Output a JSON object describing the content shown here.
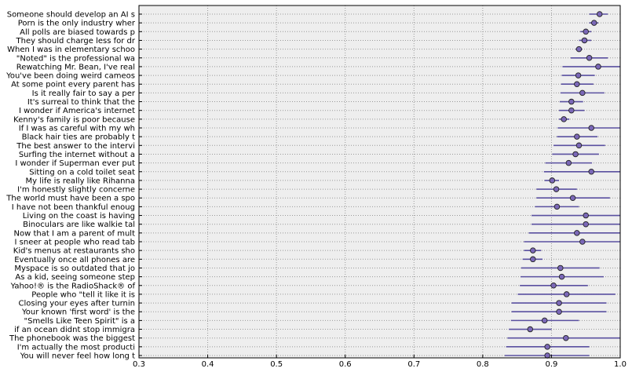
{
  "chart_data": {
    "type": "scatter",
    "orientation": "horizontal-interval",
    "title": "",
    "xlabel": "",
    "ylabel": "",
    "xlim": [
      0.3,
      1.0
    ],
    "x_ticks": [
      "0.3",
      "0.4",
      "0.5",
      "0.6",
      "0.7",
      "0.8",
      "0.9",
      "1.0"
    ],
    "grid": true,
    "colors": {
      "background": "#eeeeee",
      "marker": "#7b68b8",
      "interval": "#5a50a0",
      "grid": "#999999"
    },
    "rows": [
      {
        "label": "Someone should develop an AI s",
        "value": 0.97,
        "low": 0.955,
        "high": 0.982
      },
      {
        "label": "Porn is the only industry wher",
        "value": 0.962,
        "low": 0.955,
        "high": 0.968
      },
      {
        "label": "All polls are biased towards p",
        "value": 0.95,
        "low": 0.942,
        "high": 0.958
      },
      {
        "label": "They should charge less for dr",
        "value": 0.948,
        "low": 0.94,
        "high": 0.958
      },
      {
        "label": "When I was in elementary schoo",
        "value": 0.94,
        "low": 0.935,
        "high": 0.945
      },
      {
        "label": "\"Noted\" is the professional wa",
        "value": 0.955,
        "low": 0.928,
        "high": 0.982
      },
      {
        "label": "Rewatching Mr. Bean, I've real",
        "value": 0.968,
        "low": 0.916,
        "high": 1.0
      },
      {
        "label": "You've been doing weird cameos",
        "value": 0.939,
        "low": 0.915,
        "high": 0.963
      },
      {
        "label": "At some point every parent has",
        "value": 0.937,
        "low": 0.914,
        "high": 0.961
      },
      {
        "label": "Is it really fair to say a per",
        "value": 0.945,
        "low": 0.913,
        "high": 0.977
      },
      {
        "label": "It's surreal to think that the",
        "value": 0.929,
        "low": 0.912,
        "high": 0.946
      },
      {
        "label": "I wonder if America's internet",
        "value": 0.929,
        "low": 0.911,
        "high": 0.948
      },
      {
        "label": "Kenny's family is poor because",
        "value": 0.918,
        "low": 0.911,
        "high": 0.926
      },
      {
        "label": "If I was as careful with my wh",
        "value": 0.958,
        "low": 0.909,
        "high": 1.0
      },
      {
        "label": "Black hair ties are probably t",
        "value": 0.937,
        "low": 0.908,
        "high": 0.967
      },
      {
        "label": "The best answer to the intervi",
        "value": 0.94,
        "low": 0.903,
        "high": 0.978
      },
      {
        "label": "Surfing the internet without a",
        "value": 0.935,
        "low": 0.901,
        "high": 0.969
      },
      {
        "label": "I wonder if Superman ever put",
        "value": 0.925,
        "low": 0.891,
        "high": 0.959
      },
      {
        "label": "Sitting on a cold toilet seat",
        "value": 0.958,
        "low": 0.889,
        "high": 1.0
      },
      {
        "label": "My life is really like Rihanna",
        "value": 0.901,
        "low": 0.89,
        "high": 0.911
      },
      {
        "label": "I'm honestly slightly concerne",
        "value": 0.907,
        "low": 0.878,
        "high": 0.937
      },
      {
        "label": "The world must have been a spo",
        "value": 0.931,
        "low": 0.878,
        "high": 0.985
      },
      {
        "label": "I have not been thankful enoug",
        "value": 0.908,
        "low": 0.876,
        "high": 0.94
      },
      {
        "label": "Living on the coast is having",
        "value": 0.95,
        "low": 0.871,
        "high": 1.0
      },
      {
        "label": "Binoculars are like walkie tal",
        "value": 0.95,
        "low": 0.871,
        "high": 1.0
      },
      {
        "label": "Now that I am a parent of mult",
        "value": 0.937,
        "low": 0.867,
        "high": 1.0
      },
      {
        "label": "I sneer at people who read tab",
        "value": 0.945,
        "low": 0.86,
        "high": 1.0
      },
      {
        "label": "Kid's menus at restaurants sho",
        "value": 0.873,
        "low": 0.86,
        "high": 0.885
      },
      {
        "label": "Eventually once all phones are",
        "value": 0.873,
        "low": 0.858,
        "high": 0.887
      },
      {
        "label": "Myspace is so outdated that jo",
        "value": 0.913,
        "low": 0.856,
        "high": 0.97
      },
      {
        "label": "As a kid, seeing someone step",
        "value": 0.915,
        "low": 0.855,
        "high": 0.976
      },
      {
        "label": "Yahoo!® is the RadioShack® of",
        "value": 0.903,
        "low": 0.854,
        "high": 0.953
      },
      {
        "label": "People who \"tell it like it is",
        "value": 0.922,
        "low": 0.851,
        "high": 0.993
      },
      {
        "label": "Closing your eyes after turnin",
        "value": 0.911,
        "low": 0.842,
        "high": 0.98
      },
      {
        "label": "Your known 'first word' is the",
        "value": 0.911,
        "low": 0.842,
        "high": 0.98
      },
      {
        "label": "\"Smells Like Teen Spirit\" is a",
        "value": 0.89,
        "low": 0.841,
        "high": 0.94
      },
      {
        "label": "if an ocean didnt stop immigra",
        "value": 0.869,
        "low": 0.838,
        "high": 0.9
      },
      {
        "label": "The phonebook was the biggest",
        "value": 0.921,
        "low": 0.836,
        "high": 1.0
      },
      {
        "label": "I'm actually the most producti",
        "value": 0.894,
        "low": 0.834,
        "high": 0.955
      },
      {
        "label": "You will never feel how long t",
        "value": 0.894,
        "low": 0.832,
        "high": 0.955
      }
    ]
  }
}
